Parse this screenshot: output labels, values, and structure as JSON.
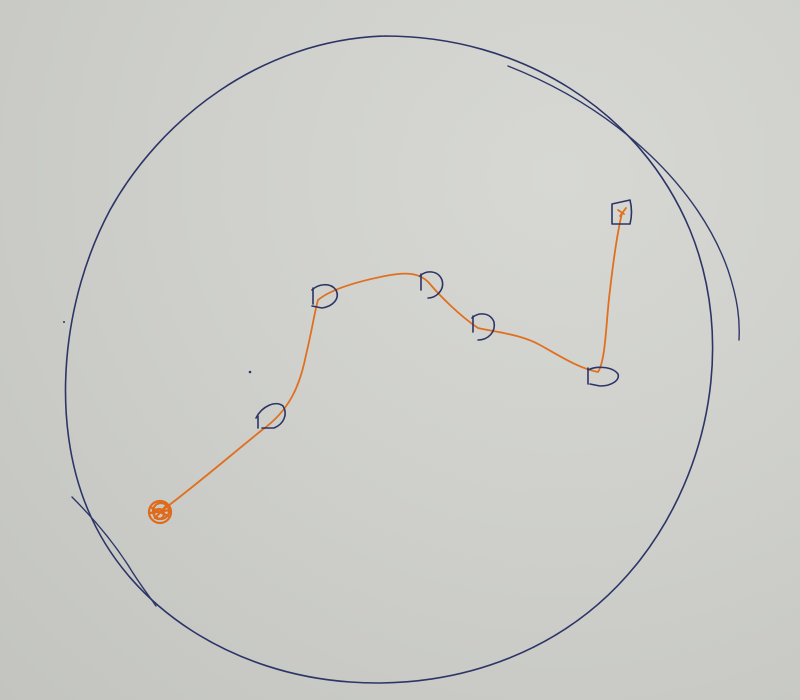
{
  "photo": {
    "subject": "hand-drawn-path-sketch",
    "colors": {
      "paper": "#cfd0cc",
      "blue_ink": "#2c3566",
      "orange_ink": "#e0701f"
    }
  },
  "sketch": {
    "start_marker": "scribbled-orange-circle",
    "waypoint_count": 6,
    "end_marker": "small-square-marker"
  }
}
